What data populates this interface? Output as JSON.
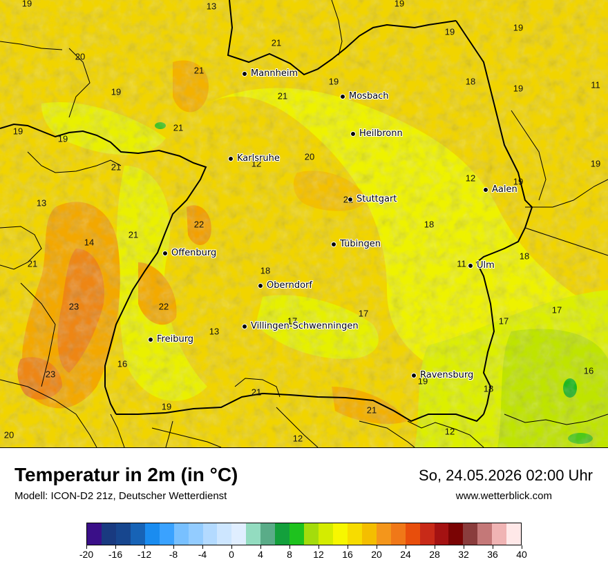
{
  "map": {
    "cities": [
      {
        "name": "Mannheim",
        "id": "mannheim"
      },
      {
        "name": "Mosbach",
        "id": "mosbach"
      },
      {
        "name": "Heilbronn",
        "id": "heilbronn"
      },
      {
        "name": "Karlsruhe",
        "id": "karlsruhe"
      },
      {
        "name": "Stuttgart",
        "id": "stuttgart"
      },
      {
        "name": "Aalen",
        "id": "aalen"
      },
      {
        "name": "Tübingen",
        "id": "tuebingen"
      },
      {
        "name": "Offenburg",
        "id": "offenburg"
      },
      {
        "name": "Ulm",
        "id": "ulm"
      },
      {
        "name": "Oberndorf",
        "id": "oberndorf"
      },
      {
        "name": "Villingen-Schwenningen",
        "id": "villingen"
      },
      {
        "name": "Freiburg",
        "id": "freiburg"
      },
      {
        "name": "Ravensburg",
        "id": "ravensburg"
      }
    ],
    "values": [
      "19",
      "13",
      "19",
      "19",
      "21",
      "20",
      "21",
      "19",
      "21",
      "19",
      "18",
      "19",
      "11",
      "19",
      "19",
      "21",
      "19",
      "21",
      "12",
      "20",
      "12",
      "19",
      "19",
      "13",
      "21",
      "18",
      "22",
      "14",
      "21",
      "21",
      "18",
      "11",
      "18",
      "23",
      "22",
      "17",
      "17",
      "17",
      "13",
      "17",
      "16",
      "16",
      "23",
      "19",
      "18",
      "21",
      "19",
      "21",
      "12",
      "12",
      "20"
    ],
    "field_colors": {
      "base": "#f1d400",
      "warm": "#f3a600",
      "hot": "#ee7d14",
      "cool": "#eef200",
      "cooler": "#cde600",
      "green": "#1fb81f"
    }
  },
  "footer": {
    "title": "Temperatur in 2m (in °C)",
    "model": "Modell: ICON-D2 21z, Deutscher Wetterdienst",
    "datetime": "So, 24.05.2026 02:00 Uhr",
    "website": "www.wetterblick.com"
  },
  "legend": {
    "colors": [
      "#3a0f88",
      "#193a80",
      "#17468e",
      "#1763b6",
      "#1a8cf0",
      "#3aa2ff",
      "#78c0ff",
      "#93ccff",
      "#b3daff",
      "#cde6ff",
      "#e0eeff",
      "#93dcc0",
      "#5aac88",
      "#13a03c",
      "#1ec21e",
      "#a4dc0c",
      "#d4ec00",
      "#f7f700",
      "#f7dc00",
      "#f4be00",
      "#f4961b",
      "#f07818",
      "#e84e0c",
      "#c82a18",
      "#a41212",
      "#7a0404",
      "#8a3c3c",
      "#c47878",
      "#f0b4b4",
      "#ffe8e8"
    ],
    "tick_values": [
      "-20",
      "-16",
      "-12",
      "-8",
      "-4",
      "0",
      "4",
      "8",
      "12",
      "16",
      "20",
      "24",
      "28",
      "32",
      "36",
      "40"
    ]
  }
}
